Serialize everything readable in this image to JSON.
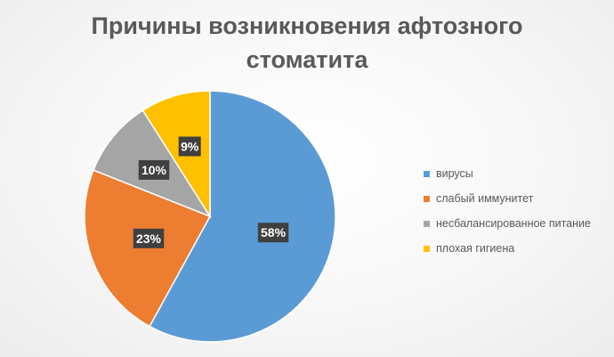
{
  "chart_data": {
    "type": "pie",
    "title_line1": "Причины возникновения афтозного",
    "title_line2": "стоматита",
    "categories": [
      "вирусы",
      "слабый иммунитет",
      "несбалансированное питание",
      "плохая гигиена"
    ],
    "values": [
      58,
      23,
      10,
      9
    ],
    "value_labels": [
      "58%",
      "23%",
      "10%",
      "9%"
    ],
    "colors": [
      "#5B9BD5",
      "#ED7D31",
      "#A5A5A5",
      "#FFC000"
    ],
    "label_style": {
      "box_color": "#404040",
      "text_color": "#FFFFFF"
    },
    "legend_position": "right"
  }
}
